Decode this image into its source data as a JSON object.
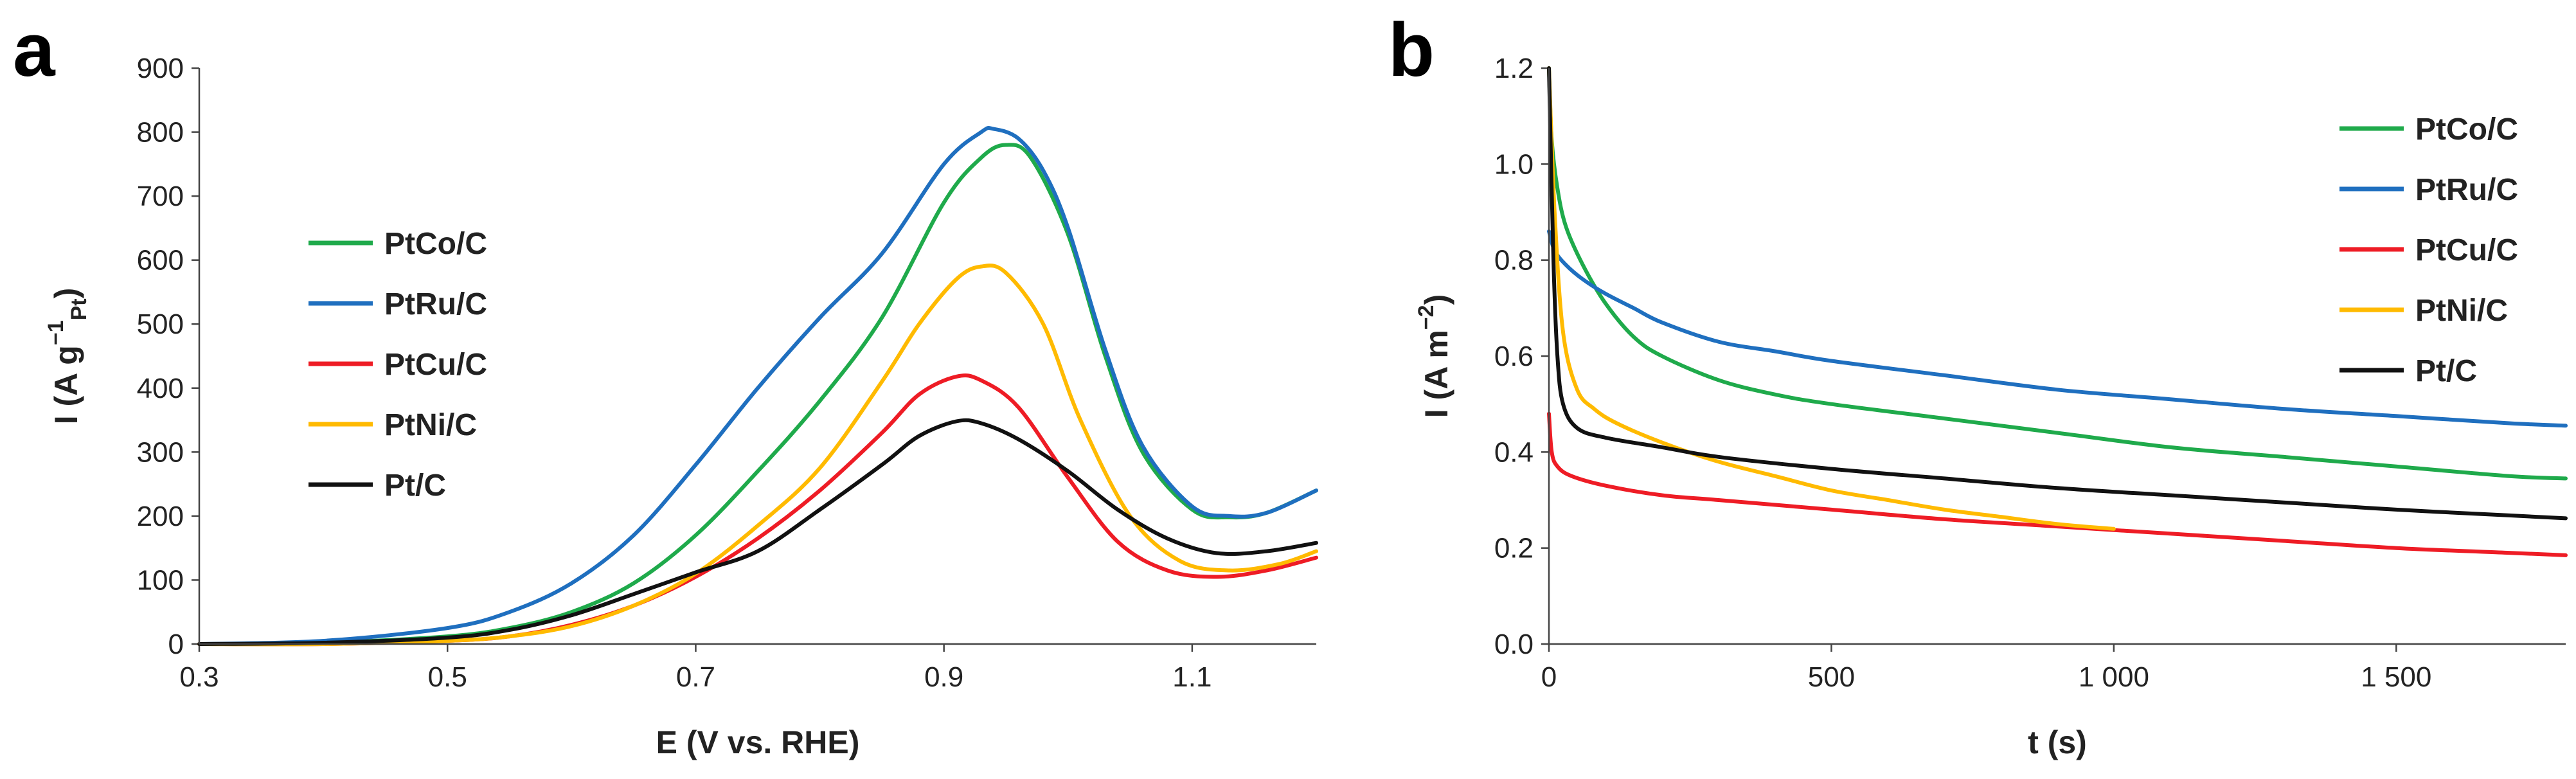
{
  "chart_data": [
    {
      "type": "line",
      "panel_label": "a",
      "xlabel": "E (V vs. RHE)",
      "ylabel_parts": {
        "main": "I (A g",
        "sup": "−1",
        "sub": "Pt",
        "end": ")"
      },
      "xlim": [
        0.3,
        1.2
      ],
      "ylim": [
        0,
        900
      ],
      "xticks": [
        0.3,
        0.5,
        0.7,
        0.9,
        1.1
      ],
      "xtick_labels": [
        "0.3",
        "0.5",
        "0.7",
        "0.9",
        "1.1"
      ],
      "yticks": [
        0,
        100,
        200,
        300,
        400,
        500,
        600,
        700,
        800,
        900
      ],
      "ytick_labels": [
        "0",
        "100",
        "200",
        "300",
        "400",
        "500",
        "600",
        "700",
        "800",
        "900"
      ],
      "grid": false,
      "legend_position": "center-left",
      "series": [
        {
          "name": "PtCo/C",
          "color": "#1faa4b",
          "points": [
            [
              0.3,
              0
            ],
            [
              0.4,
              2
            ],
            [
              0.5,
              12
            ],
            [
              0.55,
              25
            ],
            [
              0.6,
              50
            ],
            [
              0.65,
              95
            ],
            [
              0.7,
              170
            ],
            [
              0.75,
              270
            ],
            [
              0.8,
              380
            ],
            [
              0.85,
              510
            ],
            [
              0.9,
              690
            ],
            [
              0.93,
              760
            ],
            [
              0.95,
              780
            ],
            [
              0.97,
              760
            ],
            [
              1.0,
              640
            ],
            [
              1.03,
              450
            ],
            [
              1.06,
              300
            ],
            [
              1.1,
              210
            ],
            [
              1.13,
              198
            ],
            [
              1.16,
              205
            ],
            [
              1.2,
              240
            ]
          ]
        },
        {
          "name": "PtRu/C",
          "color": "#1f6fbf",
          "points": [
            [
              0.3,
              0
            ],
            [
              0.4,
              5
            ],
            [
              0.5,
              25
            ],
            [
              0.55,
              50
            ],
            [
              0.6,
              95
            ],
            [
              0.65,
              170
            ],
            [
              0.7,
              280
            ],
            [
              0.75,
              400
            ],
            [
              0.8,
              510
            ],
            [
              0.85,
              610
            ],
            [
              0.9,
              750
            ],
            [
              0.93,
              800
            ],
            [
              0.94,
              805
            ],
            [
              0.96,
              790
            ],
            [
              0.98,
              740
            ],
            [
              1.0,
              650
            ],
            [
              1.03,
              460
            ],
            [
              1.06,
              310
            ],
            [
              1.1,
              215
            ],
            [
              1.13,
              200
            ],
            [
              1.16,
              205
            ],
            [
              1.2,
              240
            ]
          ]
        },
        {
          "name": "PtCu/C",
          "color": "#ee1c25",
          "points": [
            [
              0.3,
              0
            ],
            [
              0.4,
              0
            ],
            [
              0.5,
              5
            ],
            [
              0.55,
              12
            ],
            [
              0.6,
              30
            ],
            [
              0.65,
              60
            ],
            [
              0.7,
              105
            ],
            [
              0.75,
              165
            ],
            [
              0.8,
              240
            ],
            [
              0.85,
              330
            ],
            [
              0.88,
              390
            ],
            [
              0.91,
              418
            ],
            [
              0.93,
              412
            ],
            [
              0.96,
              370
            ],
            [
              1.0,
              260
            ],
            [
              1.04,
              160
            ],
            [
              1.08,
              115
            ],
            [
              1.12,
              105
            ],
            [
              1.16,
              115
            ],
            [
              1.2,
              135
            ]
          ]
        },
        {
          "name": "PtNi/C",
          "color": "#ffba00",
          "points": [
            [
              0.3,
              0
            ],
            [
              0.4,
              0
            ],
            [
              0.5,
              5
            ],
            [
              0.55,
              12
            ],
            [
              0.6,
              28
            ],
            [
              0.65,
              60
            ],
            [
              0.7,
              110
            ],
            [
              0.75,
              185
            ],
            [
              0.8,
              275
            ],
            [
              0.85,
              410
            ],
            [
              0.88,
              500
            ],
            [
              0.91,
              570
            ],
            [
              0.93,
              590
            ],
            [
              0.95,
              580
            ],
            [
              0.98,
              500
            ],
            [
              1.01,
              350
            ],
            [
              1.05,
              200
            ],
            [
              1.09,
              130
            ],
            [
              1.13,
              115
            ],
            [
              1.17,
              125
            ],
            [
              1.2,
              145
            ]
          ]
        },
        {
          "name": "Pt/C",
          "color": "#111111",
          "points": [
            [
              0.3,
              0
            ],
            [
              0.4,
              2
            ],
            [
              0.5,
              10
            ],
            [
              0.55,
              22
            ],
            [
              0.6,
              45
            ],
            [
              0.65,
              78
            ],
            [
              0.7,
              112
            ],
            [
              0.75,
              145
            ],
            [
              0.8,
              210
            ],
            [
              0.85,
              280
            ],
            [
              0.88,
              325
            ],
            [
              0.91,
              348
            ],
            [
              0.93,
              345
            ],
            [
              0.96,
              320
            ],
            [
              1.0,
              270
            ],
            [
              1.04,
              210
            ],
            [
              1.08,
              165
            ],
            [
              1.12,
              142
            ],
            [
              1.16,
              145
            ],
            [
              1.2,
              158
            ]
          ]
        }
      ]
    },
    {
      "type": "line",
      "panel_label": "b",
      "xlabel": "t (s)",
      "ylabel_parts": {
        "main": "I (A m",
        "sup": "−2",
        "sub": "",
        "end": ")"
      },
      "xlim": [
        0,
        1800
      ],
      "ylim": [
        0,
        1.2
      ],
      "xticks": [
        0,
        500,
        1000,
        1500
      ],
      "xtick_labels": [
        "0",
        "500",
        "1 000",
        "1 500"
      ],
      "yticks": [
        0,
        0.2,
        0.4,
        0.6,
        0.8,
        1.0,
        1.2
      ],
      "ytick_labels": [
        "0.0",
        "0.2",
        "0.4",
        "0.6",
        "0.8",
        "1.0",
        "1.2"
      ],
      "grid": false,
      "legend_position": "top-right",
      "series": [
        {
          "name": "PtCo/C",
          "color": "#1faa4b",
          "points": [
            [
              0,
              1.2
            ],
            [
              5,
              1.05
            ],
            [
              15,
              0.95
            ],
            [
              30,
              0.87
            ],
            [
              60,
              0.79
            ],
            [
              100,
              0.71
            ],
            [
              150,
              0.64
            ],
            [
              200,
              0.6
            ],
            [
              300,
              0.55
            ],
            [
              400,
              0.52
            ],
            [
              500,
              0.5
            ],
            [
              700,
              0.47
            ],
            [
              900,
              0.44
            ],
            [
              1100,
              0.41
            ],
            [
              1300,
              0.39
            ],
            [
              1500,
              0.37
            ],
            [
              1700,
              0.35
            ],
            [
              1800,
              0.345
            ]
          ]
        },
        {
          "name": "PtRu/C",
          "color": "#1f6fbf",
          "points": [
            [
              0,
              0.86
            ],
            [
              10,
              0.82
            ],
            [
              30,
              0.79
            ],
            [
              60,
              0.76
            ],
            [
              100,
              0.73
            ],
            [
              150,
              0.7
            ],
            [
              200,
              0.67
            ],
            [
              300,
              0.63
            ],
            [
              400,
              0.61
            ],
            [
              500,
              0.59
            ],
            [
              700,
              0.56
            ],
            [
              900,
              0.53
            ],
            [
              1100,
              0.51
            ],
            [
              1300,
              0.49
            ],
            [
              1500,
              0.475
            ],
            [
              1700,
              0.46
            ],
            [
              1800,
              0.455
            ]
          ]
        },
        {
          "name": "PtCu/C",
          "color": "#ee1c25",
          "points": [
            [
              0,
              0.48
            ],
            [
              5,
              0.4
            ],
            [
              15,
              0.37
            ],
            [
              40,
              0.35
            ],
            [
              100,
              0.33
            ],
            [
              200,
              0.31
            ],
            [
              300,
              0.3
            ],
            [
              500,
              0.28
            ],
            [
              700,
              0.26
            ],
            [
              900,
              0.245
            ],
            [
              1100,
              0.23
            ],
            [
              1300,
              0.215
            ],
            [
              1500,
              0.2
            ],
            [
              1700,
              0.19
            ],
            [
              1800,
              0.185
            ]
          ]
        },
        {
          "name": "PtNi/C",
          "color": "#ffba00",
          "points": [
            [
              0,
              1.2
            ],
            [
              10,
              0.9
            ],
            [
              25,
              0.65
            ],
            [
              50,
              0.53
            ],
            [
              80,
              0.49
            ],
            [
              120,
              0.46
            ],
            [
              200,
              0.42
            ],
            [
              300,
              0.38
            ],
            [
              400,
              0.35
            ],
            [
              500,
              0.32
            ],
            [
              600,
              0.3
            ],
            [
              700,
              0.28
            ],
            [
              800,
              0.265
            ],
            [
              900,
              0.25
            ],
            [
              1000,
              0.24
            ]
          ]
        },
        {
          "name": "Pt/C",
          "color": "#111111",
          "points": [
            [
              0,
              1.2
            ],
            [
              8,
              0.8
            ],
            [
              15,
              0.6
            ],
            [
              25,
              0.5
            ],
            [
              50,
              0.45
            ],
            [
              100,
              0.43
            ],
            [
              200,
              0.41
            ],
            [
              300,
              0.39
            ],
            [
              500,
              0.365
            ],
            [
              700,
              0.345
            ],
            [
              900,
              0.325
            ],
            [
              1100,
              0.31
            ],
            [
              1300,
              0.295
            ],
            [
              1500,
              0.28
            ],
            [
              1700,
              0.268
            ],
            [
              1800,
              0.262
            ]
          ]
        }
      ]
    }
  ]
}
